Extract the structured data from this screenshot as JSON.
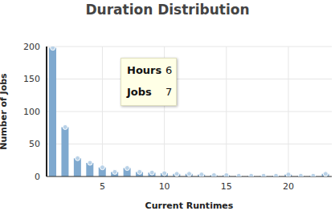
{
  "chart_data": {
    "type": "bar",
    "title": "Duration Distribution",
    "x_label": "Current Runtimes",
    "y_label": "Number of Jobs",
    "x": [
      1,
      2,
      3,
      4,
      5,
      6,
      7,
      8,
      9,
      10,
      11,
      12,
      13,
      14,
      15,
      16,
      17,
      18,
      19,
      20,
      21,
      22,
      23
    ],
    "values": [
      198,
      76,
      28,
      21,
      14,
      7,
      13,
      7,
      6,
      5,
      4,
      4,
      3,
      2,
      2,
      1,
      1,
      1,
      1,
      3,
      1,
      1,
      4
    ],
    "color": "#7fa9cf",
    "marker": "circle",
    "xlim": [
      0.5,
      23.5
    ],
    "xticks": [
      5,
      10,
      15,
      20
    ],
    "ylim": [
      0,
      200
    ],
    "yticks": [
      0,
      50,
      100,
      150,
      200
    ],
    "grid": true,
    "tooltip": {
      "labels": [
        "Hours",
        "Jobs"
      ],
      "x": 6
    }
  }
}
